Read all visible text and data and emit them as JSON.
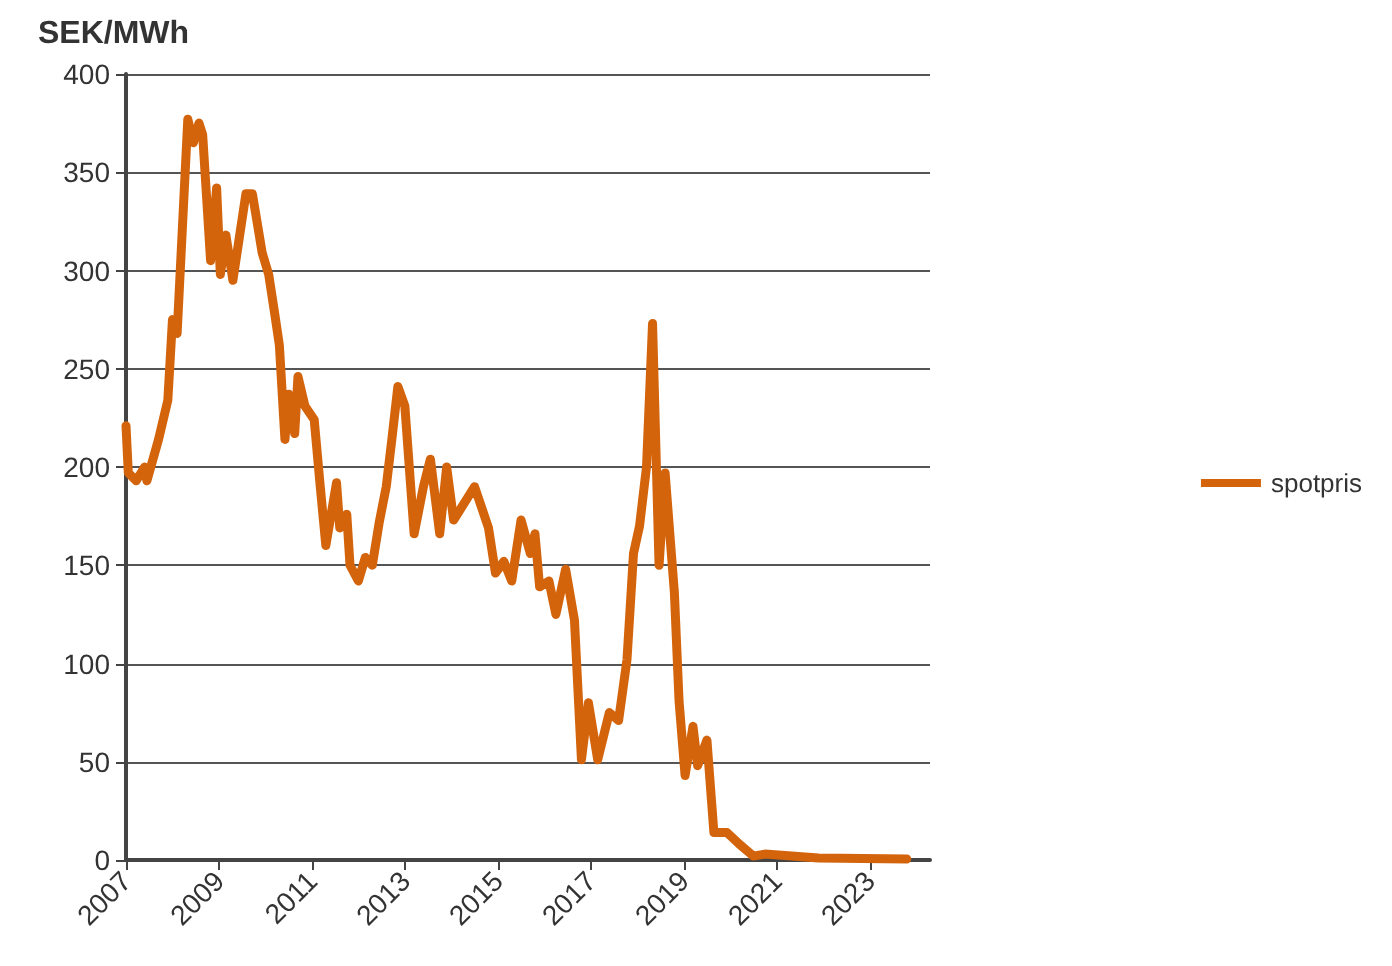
{
  "chart_data": {
    "type": "line",
    "ylabel": "SEK/MWh",
    "xlim": [
      2007,
      2024.3
    ],
    "xticks": [
      2007,
      2009,
      2011,
      2013,
      2015,
      2017,
      2019,
      2021,
      2023
    ],
    "ylim": [
      0,
      400
    ],
    "yticks": [
      0,
      50,
      100,
      150,
      200,
      250,
      300,
      350,
      400
    ],
    "grid": "y",
    "legend": "right",
    "marker": "none",
    "line_style": "solid",
    "series": [
      {
        "name": "spotpris",
        "color": "#d4640c",
        "x": [
          2007.0,
          2007.05,
          2007.22,
          2007.4,
          2007.45,
          2007.7,
          2007.9,
          2008.0,
          2008.1,
          2008.33,
          2008.45,
          2008.57,
          2008.65,
          2008.82,
          2008.95,
          2009.03,
          2009.15,
          2009.3,
          2009.58,
          2009.72,
          2009.93,
          2010.07,
          2010.2,
          2010.3,
          2010.42,
          2010.5,
          2010.63,
          2010.7,
          2010.85,
          2011.05,
          2011.18,
          2011.3,
          2011.53,
          2011.6,
          2011.75,
          2011.82,
          2012.0,
          2012.15,
          2012.3,
          2012.45,
          2012.6,
          2012.72,
          2012.85,
          2013.0,
          2013.2,
          2013.4,
          2013.55,
          2013.75,
          2013.9,
          2014.05,
          2014.5,
          2014.8,
          2014.95,
          2015.13,
          2015.3,
          2015.5,
          2015.7,
          2015.8,
          2015.9,
          2016.1,
          2016.25,
          2016.46,
          2016.65,
          2016.8,
          2016.95,
          2017.15,
          2017.4,
          2017.6,
          2017.78,
          2017.92,
          2018.05,
          2018.2,
          2018.33,
          2018.47,
          2018.6,
          2018.8,
          2018.9,
          2019.03,
          2019.2,
          2019.3,
          2019.5,
          2019.65,
          2019.93,
          2020.2,
          2020.5,
          2020.75,
          2021.9,
          2023.8
        ],
        "values": [
          221,
          197,
          193,
          200,
          193,
          214,
          234,
          275,
          268,
          377,
          365,
          375,
          369,
          305,
          342,
          298,
          318,
          295,
          339,
          339,
          309,
          298,
          278,
          262,
          214,
          237,
          217,
          246,
          231,
          224,
          190,
          160,
          192,
          169,
          176,
          150,
          142,
          154,
          150,
          172,
          190,
          214,
          241,
          231,
          166,
          190,
          204,
          166,
          200,
          173,
          190,
          169,
          146,
          152,
          142,
          173,
          156,
          166,
          139,
          142,
          125,
          148,
          122,
          51,
          80,
          51,
          75,
          71,
          102,
          156,
          170,
          200,
          273,
          150,
          197,
          136,
          81,
          43,
          68,
          48,
          61,
          14,
          14,
          8,
          2,
          3,
          1,
          0.5
        ]
      }
    ]
  }
}
